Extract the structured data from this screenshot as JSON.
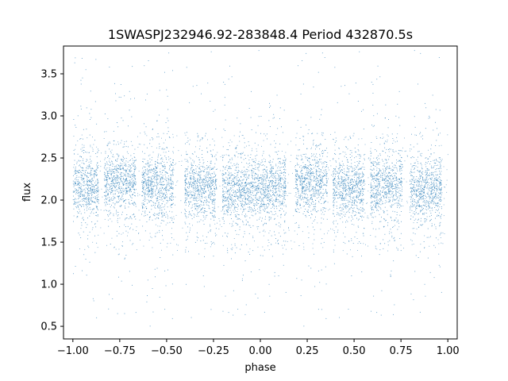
{
  "chart_data": {
    "type": "scatter",
    "title": "1SWASPJ232946.92-283848.4 Period 432870.5s",
    "xlabel": "phase",
    "ylabel": "flux",
    "xlim": [
      -1.05,
      1.05
    ],
    "ylim": [
      0.35,
      3.83
    ],
    "xticks": [
      -1.0,
      -0.75,
      -0.5,
      -0.25,
      0.0,
      0.25,
      0.5,
      0.75,
      1.0
    ],
    "xtick_labels": [
      "−1.00",
      "−0.75",
      "−0.50",
      "−0.25",
      "0.00",
      "0.25",
      "0.50",
      "0.75",
      "1.00"
    ],
    "yticks": [
      0.5,
      1.0,
      1.5,
      2.0,
      2.5,
      3.0,
      3.5
    ],
    "ytick_labels": [
      "0.5",
      "1.0",
      "1.5",
      "2.0",
      "2.5",
      "3.0",
      "3.5"
    ],
    "grid": false,
    "point_color": "#1f77b4",
    "series": [
      {
        "clusters": [
          {
            "phase_center": -0.95,
            "flux_center": 2.15
          },
          {
            "phase_center": -0.75,
            "flux_center": 2.22
          },
          {
            "phase_center": -0.55,
            "flux_center": 2.18
          },
          {
            "phase_center": -0.32,
            "flux_center": 2.15
          },
          {
            "phase_center": -0.12,
            "flux_center": 2.13
          },
          {
            "phase_center": 0.05,
            "flux_center": 2.15
          },
          {
            "phase_center": 0.27,
            "flux_center": 2.22
          },
          {
            "phase_center": 0.47,
            "flux_center": 2.15
          },
          {
            "phase_center": 0.67,
            "flux_center": 2.18
          },
          {
            "phase_center": 0.88,
            "flux_center": 2.13
          }
        ],
        "flux_core_range": [
          1.8,
          2.6
        ],
        "flux_full_range": [
          0.5,
          3.8
        ]
      }
    ]
  }
}
